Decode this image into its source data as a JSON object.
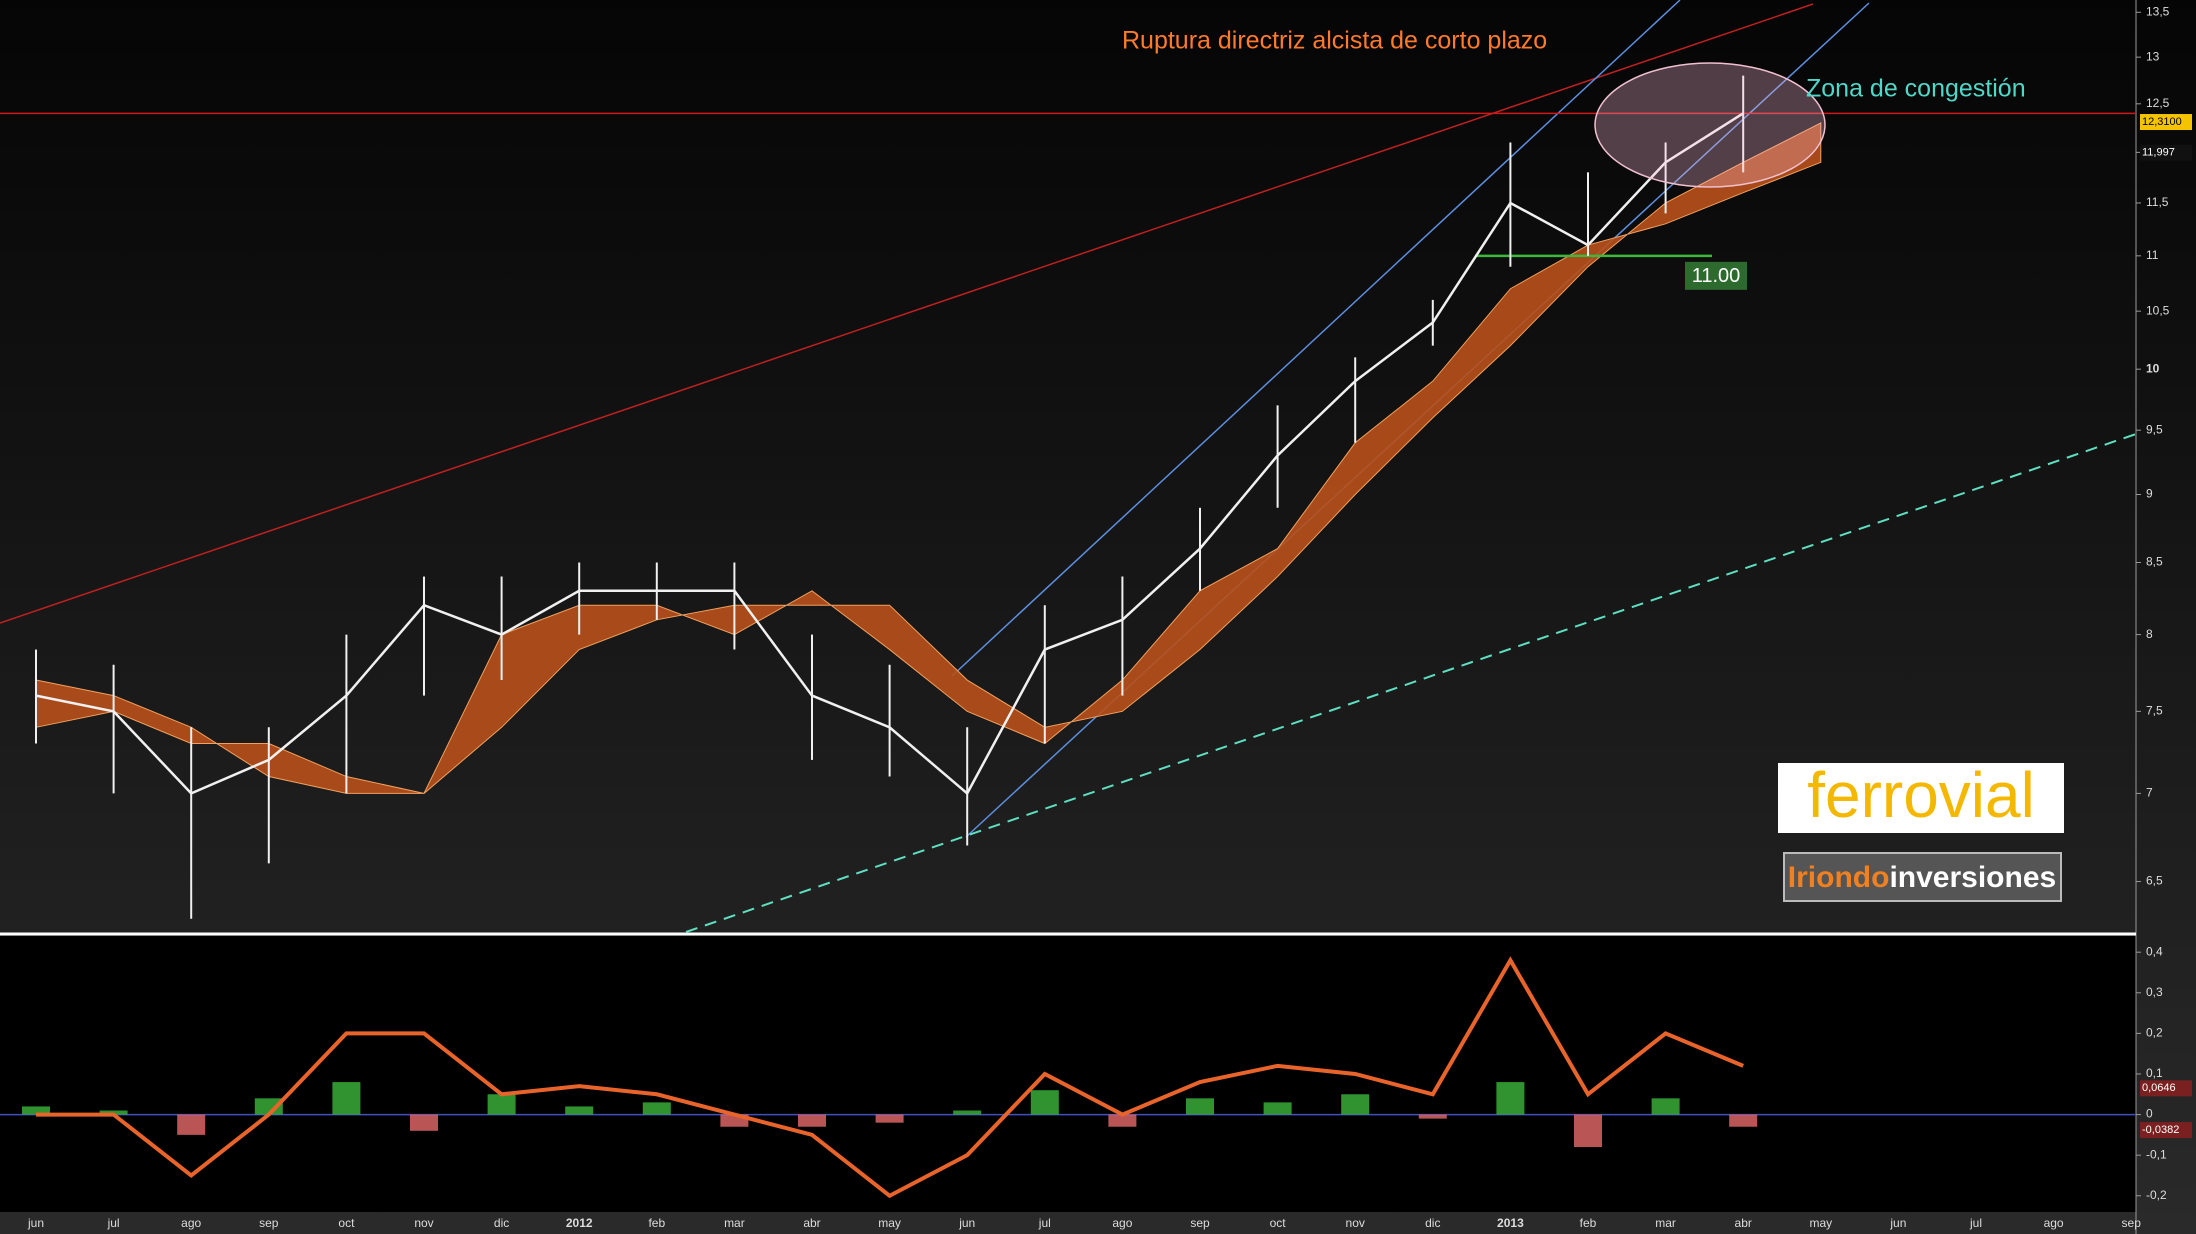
{
  "chart_data": [
    {
      "type": "stock",
      "title": "Ruptura directriz alcista de corto plazo",
      "annotation": "Zona de congestión",
      "categories": [
        "jun",
        "jul",
        "ago",
        "sep",
        "oct",
        "nov",
        "dic",
        "2012",
        "feb",
        "mar",
        "abr",
        "may",
        "jun",
        "jul",
        "ago",
        "sep",
        "oct",
        "nov",
        "dic",
        "2013",
        "feb",
        "mar",
        "abr",
        "may",
        "jun",
        "jul",
        "ago",
        "sep"
      ],
      "close": [
        7.6,
        7.5,
        7.0,
        7.2,
        7.6,
        8.2,
        8.0,
        8.3,
        8.3,
        8.3,
        7.6,
        7.4,
        7.0,
        7.9,
        8.1,
        8.6,
        9.3,
        9.9,
        10.4,
        11.5,
        11.1,
        11.9,
        12.4,
        null,
        null,
        null,
        null,
        null
      ],
      "high": [
        7.9,
        7.8,
        7.4,
        7.4,
        8.0,
        8.4,
        8.4,
        8.5,
        8.5,
        8.5,
        8.0,
        7.8,
        7.4,
        8.2,
        8.4,
        8.9,
        9.7,
        10.1,
        10.6,
        12.1,
        11.8,
        12.1,
        12.8,
        null,
        null,
        null,
        null,
        null
      ],
      "low": [
        7.3,
        7.0,
        6.3,
        6.6,
        7.0,
        7.6,
        7.7,
        8.0,
        8.1,
        7.9,
        7.2,
        7.1,
        6.7,
        7.3,
        7.6,
        8.3,
        8.9,
        9.4,
        10.2,
        10.9,
        11.0,
        11.4,
        11.8,
        null,
        null,
        null,
        null,
        null
      ],
      "cloud_a": [
        7.4,
        7.5,
        7.3,
        7.3,
        7.1,
        7.0,
        7.4,
        7.9,
        8.1,
        8.2,
        8.2,
        8.2,
        7.7,
        7.4,
        7.5,
        7.9,
        8.4,
        9.0,
        9.6,
        10.2,
        10.9,
        11.5,
        11.9,
        12.3,
        null,
        null,
        null,
        null
      ],
      "cloud_b": [
        7.7,
        7.6,
        7.4,
        7.1,
        7.0,
        7.0,
        8.0,
        8.2,
        8.2,
        8.0,
        8.3,
        7.9,
        7.5,
        7.3,
        7.7,
        8.3,
        8.6,
        9.4,
        9.9,
        10.7,
        11.1,
        11.3,
        11.6,
        11.9,
        null,
        null,
        null,
        null
      ],
      "color": "#f0f0f0",
      "cloud_color": "#b8501a",
      "log_scale": true,
      "ylim": [
        6.23,
        13.64
      ],
      "yticks": [
        {
          "value": 6.5,
          "label": "6,5"
        },
        7,
        {
          "value": 7.5,
          "label": "7,5"
        },
        8,
        {
          "value": 8.5,
          "label": "8,5"
        },
        9,
        {
          "value": 9.5,
          "label": "9,5"
        },
        10,
        {
          "value": 10.5,
          "label": "10,5"
        },
        11,
        {
          "value": 11.5,
          "label": "11,5"
        },
        12,
        {
          "value": 12.5,
          "label": "12,5"
        },
        13,
        {
          "value": 13.5,
          "label": "13,5"
        }
      ],
      "resistance": {
        "value": 12.4,
        "color": "#d01818"
      },
      "support": {
        "value": 11,
        "label": "11.00",
        "color": "#3cb83c"
      },
      "price_tags": [
        {
          "value": 12.31,
          "label": "12,3100",
          "color": "#f5c400"
        },
        {
          "value": 11.997,
          "label": "11,997",
          "color": "#111111"
        }
      ]
    },
    {
      "type": "macd",
      "categories": [
        "jun",
        "jul",
        "ago",
        "sep",
        "oct",
        "nov",
        "dic",
        "2012",
        "feb",
        "mar",
        "abr",
        "may",
        "jun",
        "jul",
        "ago",
        "sep",
        "oct",
        "nov",
        "dic",
        "2013",
        "feb",
        "mar",
        "abr",
        "may",
        "jun",
        "jul",
        "ago",
        "sep"
      ],
      "values": [
        0.0,
        0.0,
        -0.15,
        0.0,
        0.2,
        0.2,
        0.05,
        0.07,
        0.05,
        0.0,
        -0.05,
        -0.2,
        -0.1,
        0.1,
        0.0,
        0.08,
        0.12,
        0.1,
        0.05,
        0.38,
        0.05,
        0.2,
        0.12,
        null,
        null,
        null,
        null,
        null
      ],
      "histogram": [
        0.02,
        0.01,
        -0.05,
        0.04,
        0.08,
        -0.04,
        0.05,
        0.02,
        0.03,
        -0.03,
        -0.03,
        -0.02,
        0.01,
        0.06,
        -0.03,
        0.04,
        0.03,
        0.05,
        -0.01,
        0.08,
        -0.08,
        0.04,
        -0.03,
        null,
        null,
        null,
        null,
        null
      ],
      "color": "#e8642a",
      "positive_color": "#3cb83c",
      "negative_color": "#e86a6a",
      "ylim": [
        -0.24,
        0.43
      ],
      "yticks": [
        {
          "value": -0.2,
          "label": "-0,2"
        },
        {
          "value": -0.1,
          "label": "-0,1"
        },
        0,
        {
          "value": 0.1,
          "label": "0,1"
        },
        {
          "value": 0.2,
          "label": "0,2"
        },
        {
          "value": 0.3,
          "label": "0,3"
        },
        {
          "value": 0.4,
          "label": "0,4"
        }
      ],
      "price_tags": [
        {
          "value": 0.0646,
          "label": "0,0646",
          "color": "#7a2020"
        },
        {
          "value": -0.0382,
          "label": "-0,0382",
          "color": "#7a2020"
        }
      ]
    }
  ],
  "logos": {
    "brand": "ferrovial",
    "partner_a": "Iriondo",
    "partner_b": "inversiones"
  }
}
